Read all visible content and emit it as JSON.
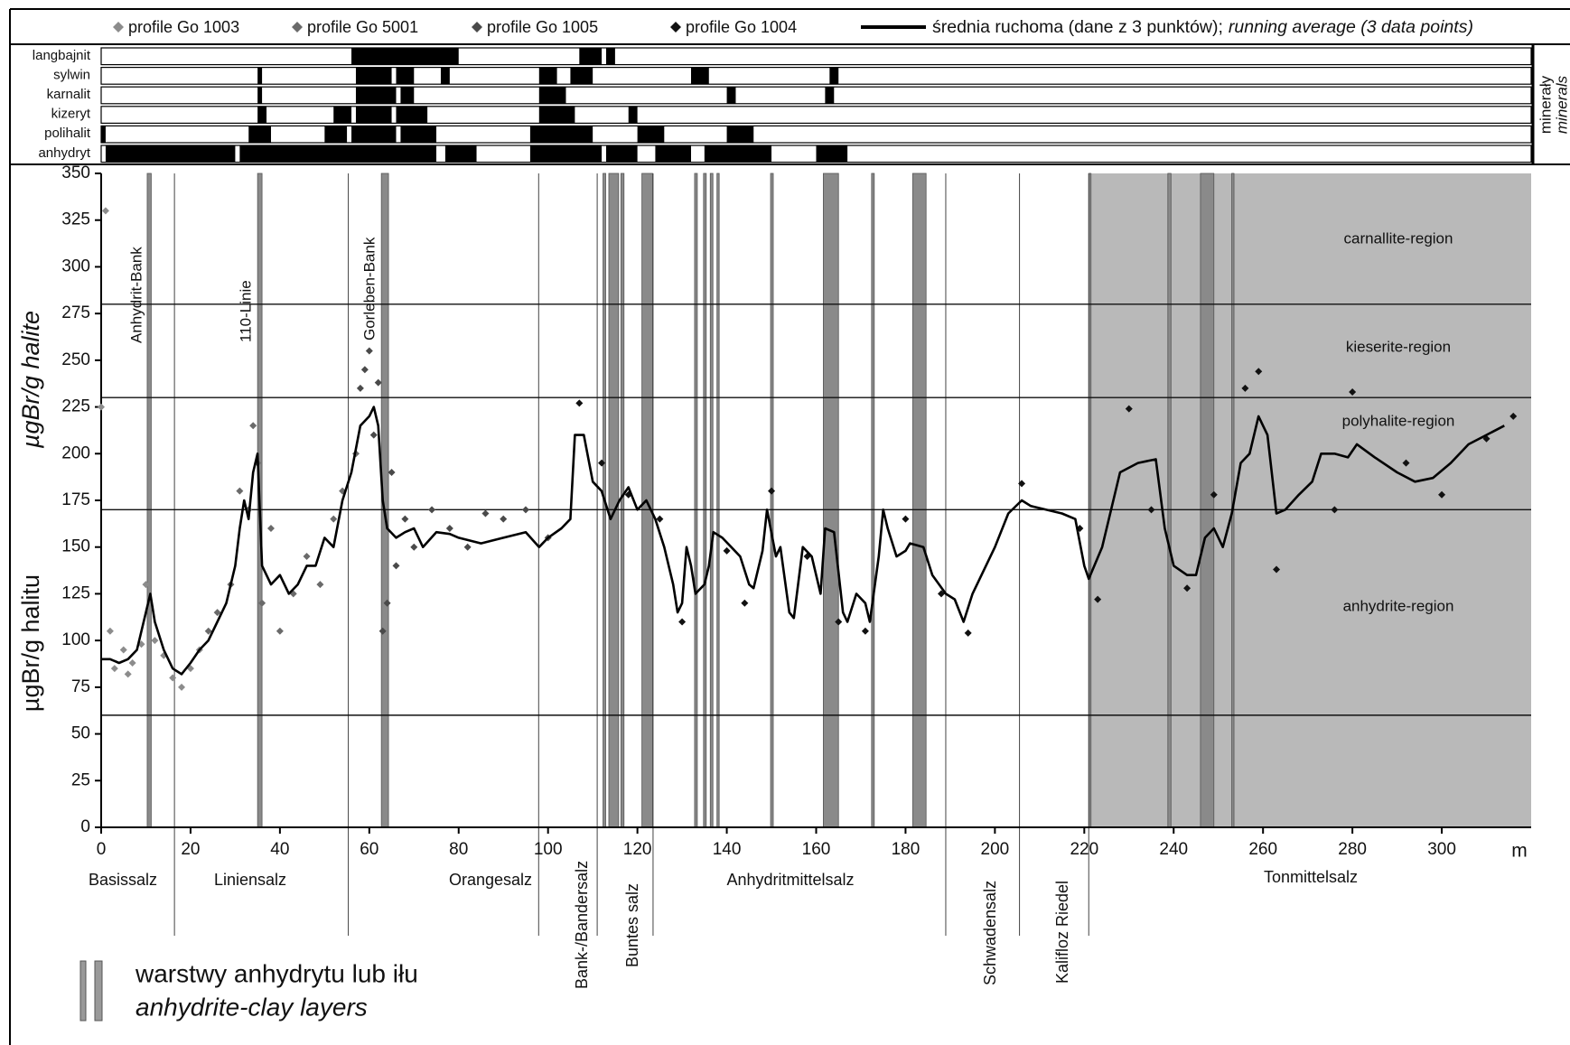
{
  "chart_data": {
    "type": "line",
    "y_title": "µgBr/g halite",
    "y_title_2": "µgBr/g halitu",
    "x_unit": "m",
    "xlim": [
      0,
      320
    ],
    "xticks": [
      0,
      20,
      40,
      60,
      80,
      100,
      120,
      140,
      160,
      180,
      200,
      220,
      240,
      260,
      280,
      300
    ],
    "ylim": [
      0,
      350
    ],
    "yticks": [
      0,
      25,
      50,
      75,
      100,
      125,
      150,
      175,
      200,
      225,
      250,
      275,
      300,
      325,
      350
    ],
    "series": [
      {
        "name": "profile Go 1003",
        "type": "scatter",
        "color": "#8c8c8c",
        "x": [
          0,
          1,
          2,
          3,
          5,
          6,
          7,
          9,
          10,
          11,
          12,
          14,
          16,
          18,
          20,
          22
        ],
        "values": [
          225,
          330,
          105,
          85,
          95,
          82,
          88,
          98,
          130,
          118,
          100,
          92,
          80,
          75,
          85,
          95
        ]
      },
      {
        "name": "profile Go 5001",
        "type": "scatter",
        "color": "#6a6a6a",
        "x": [
          24,
          26,
          29,
          31,
          33,
          34,
          35,
          36,
          38,
          40,
          43,
          46,
          49,
          52,
          54,
          57
        ],
        "values": [
          105,
          115,
          130,
          180,
          170,
          215,
          195,
          120,
          160,
          105,
          125,
          145,
          130,
          165,
          180,
          200
        ]
      },
      {
        "name": "profile Go 1005",
        "type": "scatter",
        "color": "#4a4a4a",
        "x": [
          58,
          59,
          60,
          61,
          62,
          63,
          64,
          65,
          66,
          68,
          70,
          74,
          78,
          82,
          86,
          90,
          95,
          100
        ],
        "values": [
          235,
          245,
          255,
          210,
          238,
          105,
          120,
          190,
          140,
          165,
          150,
          170,
          160,
          150,
          168,
          165,
          170,
          155
        ]
      },
      {
        "name": "profile Go 1004",
        "type": "scatter",
        "color": "#111111",
        "x": [
          107,
          112,
          118,
          125,
          130,
          140,
          144,
          150,
          158,
          165,
          171,
          180,
          188,
          194,
          206,
          219,
          223,
          230,
          235,
          243,
          249,
          256,
          259,
          263,
          276,
          280,
          292,
          300,
          310,
          316
        ],
        "values": [
          227,
          195,
          178,
          165,
          110,
          148,
          120,
          180,
          145,
          110,
          105,
          165,
          125,
          104,
          184,
          160,
          122,
          224,
          170,
          128,
          178,
          235,
          244,
          138,
          170,
          233,
          195,
          178,
          208,
          220
        ]
      },
      {
        "name": "średnia ruchoma (dane z 3 punktów);",
        "name_italic": "running average (3 data points)",
        "type": "line",
        "color": "#000000",
        "x": [
          0,
          2,
          4,
          6,
          8,
          10,
          11,
          12,
          14,
          16,
          18,
          20,
          22,
          24,
          26,
          28,
          30,
          31,
          32,
          33,
          34,
          35,
          36,
          38,
          40,
          42,
          44,
          46,
          48,
          50,
          52,
          54,
          56,
          58,
          60,
          61,
          62,
          63,
          64,
          66,
          68,
          70,
          72,
          75,
          78,
          80,
          85,
          90,
          95,
          98,
          100,
          103,
          105,
          106,
          108,
          110,
          112,
          114,
          116,
          118,
          120,
          122,
          124,
          126,
          128,
          129,
          130,
          131,
          132,
          133,
          135,
          136,
          137,
          139,
          141,
          143,
          145,
          146,
          148,
          149,
          151,
          152,
          154,
          155,
          157,
          159,
          161,
          162,
          164,
          166,
          167,
          169,
          171,
          172,
          174,
          175,
          176,
          178,
          180,
          181,
          184,
          186,
          189,
          191,
          193,
          195,
          200,
          203,
          206,
          208,
          215,
          218,
          220,
          221,
          224,
          228,
          232,
          236,
          238,
          240,
          243,
          245,
          247,
          249,
          251,
          253,
          255,
          257,
          259,
          261,
          263,
          265,
          268,
          271,
          273,
          276,
          279,
          281,
          285,
          290,
          294,
          298,
          302,
          306,
          310,
          314
        ],
        "values": [
          90,
          90,
          88,
          90,
          95,
          115,
          125,
          110,
          95,
          85,
          82,
          88,
          95,
          100,
          110,
          120,
          140,
          160,
          175,
          165,
          190,
          200,
          140,
          130,
          135,
          125,
          130,
          140,
          140,
          155,
          150,
          175,
          190,
          215,
          220,
          225,
          215,
          175,
          160,
          155,
          158,
          160,
          150,
          158,
          157,
          155,
          152,
          155,
          158,
          150,
          155,
          160,
          165,
          210,
          210,
          185,
          180,
          165,
          175,
          182,
          170,
          175,
          165,
          150,
          130,
          115,
          120,
          150,
          140,
          125,
          130,
          140,
          158,
          155,
          150,
          145,
          130,
          128,
          148,
          170,
          145,
          150,
          115,
          112,
          150,
          145,
          125,
          160,
          158,
          115,
          110,
          125,
          120,
          110,
          145,
          170,
          160,
          145,
          148,
          152,
          150,
          135,
          125,
          122,
          110,
          125,
          150,
          168,
          175,
          172,
          168,
          165,
          140,
          133,
          150,
          190,
          195,
          197,
          160,
          140,
          135,
          135,
          155,
          160,
          150,
          168,
          195,
          200,
          220,
          210,
          168,
          170,
          178,
          185,
          200,
          200,
          198,
          205,
          198,
          190,
          185,
          187,
          195,
          205,
          210,
          215
        ]
      }
    ],
    "regions": [
      {
        "name": "carnallite-region",
        "boundary": 280
      },
      {
        "name": "kieserite-region",
        "boundary": 230
      },
      {
        "name": "polyhalite-region",
        "boundary": 170
      },
      {
        "name": "anhydrite-region",
        "boundary": 60
      }
    ],
    "annotations": [
      "Anhydrit-Bank",
      "110-Linie",
      "Gorleben-Bank"
    ],
    "layers": [
      [
        10.3,
        11.2
      ],
      [
        35,
        36
      ],
      [
        62.7,
        64.3
      ],
      [
        112.3,
        112.9
      ],
      [
        113.6,
        115.8
      ],
      [
        116.3,
        117
      ],
      [
        121,
        123.4
      ],
      [
        132.8,
        133.4
      ],
      [
        134.8,
        135.4
      ],
      [
        136.3,
        136.9
      ],
      [
        137.8,
        138.3
      ],
      [
        149.8,
        150.4
      ],
      [
        161.6,
        165
      ],
      [
        172.4,
        173
      ],
      [
        181.6,
        184.6
      ],
      [
        221,
        221.5
      ],
      [
        238.7,
        239.4
      ],
      [
        246,
        249
      ],
      [
        253,
        253.5
      ]
    ],
    "shaded_ranges": [
      [
        221,
        320
      ]
    ],
    "units": [
      "Basissalz",
      "Liniensalz",
      "Orangesalz",
      "Bank-/Bandersalz",
      "Buntes salz",
      "Anhydritmittelsalz",
      "Schwadensalz",
      "Kalifloz Riedel",
      "Tonmittelsalz"
    ],
    "unit_boundaries": [
      16.4,
      55.3,
      97.9,
      111,
      123.5,
      189,
      205.5,
      221
    ],
    "minerals_label": [
      "minerały",
      "minerals"
    ],
    "minerals": [
      {
        "name": "langbajnit",
        "intervals": [
          [
            56,
            80
          ],
          [
            107,
            112
          ],
          [
            113,
            115
          ]
        ]
      },
      {
        "name": "sylwin",
        "intervals": [
          [
            35,
            36
          ],
          [
            57,
            65
          ],
          [
            66,
            70
          ],
          [
            76,
            78
          ],
          [
            98,
            102
          ],
          [
            105,
            110
          ],
          [
            132,
            136
          ],
          [
            163,
            165
          ]
        ]
      },
      {
        "name": "karnalit",
        "intervals": [
          [
            35,
            36
          ],
          [
            57,
            66
          ],
          [
            67,
            70
          ],
          [
            98,
            104
          ],
          [
            140,
            142
          ],
          [
            162,
            164
          ]
        ]
      },
      {
        "name": "kizeryt",
        "intervals": [
          [
            35,
            37
          ],
          [
            52,
            56
          ],
          [
            57,
            65
          ],
          [
            66,
            73
          ],
          [
            98,
            106
          ],
          [
            118,
            120
          ]
        ]
      },
      {
        "name": "polihalit",
        "intervals": [
          [
            0,
            1
          ],
          [
            33,
            38
          ],
          [
            50,
            55
          ],
          [
            56,
            66
          ],
          [
            67,
            75
          ],
          [
            96,
            110
          ],
          [
            120,
            126
          ],
          [
            140,
            146
          ]
        ]
      },
      {
        "name": "anhydryt",
        "intervals": [
          [
            1,
            30
          ],
          [
            31,
            75
          ],
          [
            77,
            84
          ],
          [
            96,
            112
          ],
          [
            113,
            120
          ],
          [
            124,
            132
          ],
          [
            135,
            150
          ],
          [
            160,
            167
          ]
        ]
      }
    ],
    "layers_legend": [
      "warstwy anhydrytu lub iłu",
      "anhydrite-clay layers"
    ]
  }
}
